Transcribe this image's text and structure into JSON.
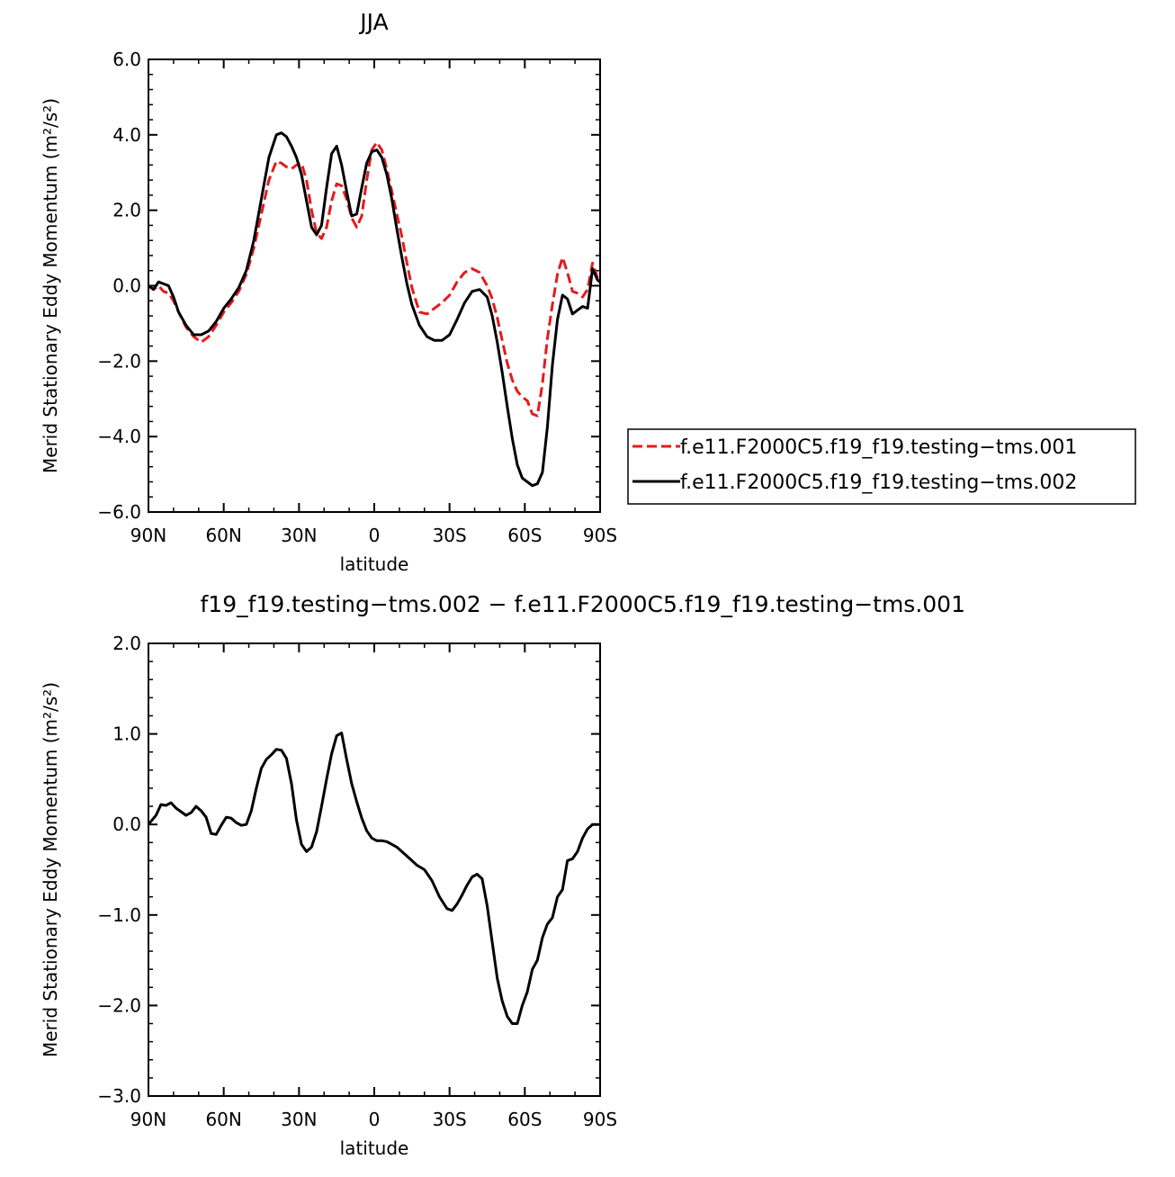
{
  "chart_data": [
    {
      "type": "line",
      "title": "JJA",
      "xlabel": "latitude",
      "ylabel": "Merid Stationary Eddy Momentum (m²/s²)",
      "xlim": [
        90,
        -90
      ],
      "ylim": [
        -6,
        6
      ],
      "x_ticks": [
        {
          "value": 90,
          "label": "90N"
        },
        {
          "value": 60,
          "label": "60N"
        },
        {
          "value": 30,
          "label": "30N"
        },
        {
          "value": 0,
          "label": "0"
        },
        {
          "value": -30,
          "label": "30S"
        },
        {
          "value": -60,
          "label": "60S"
        },
        {
          "value": -90,
          "label": "90S"
        }
      ],
      "y_ticks": [
        {
          "value": 6,
          "label": "6.0"
        },
        {
          "value": 4,
          "label": "4.0"
        },
        {
          "value": 2,
          "label": "2.0"
        },
        {
          "value": 0,
          "label": "0.0"
        },
        {
          "value": -2,
          "label": "−2.0"
        },
        {
          "value": -4,
          "label": "−4.0"
        },
        {
          "value": -6,
          "label": "−6.0"
        }
      ],
      "legend": "right",
      "series": [
        {
          "name": "f.e11.F2000C5.f19_f19.testing−tms.001",
          "color": "#e41a1c",
          "dash": "dashed",
          "x": [
            90,
            88,
            86,
            84,
            82,
            80,
            78,
            75,
            72,
            69,
            66,
            63,
            60,
            57,
            54,
            51,
            48,
            45,
            42,
            39,
            37,
            35,
            33,
            31,
            29,
            27,
            25,
            23,
            21,
            19,
            17,
            15,
            13,
            11,
            9,
            7,
            5,
            3,
            1,
            -1,
            -3,
            -5,
            -7,
            -9,
            -11,
            -13,
            -15,
            -18,
            -21,
            -24,
            -27,
            -30,
            -33,
            -36,
            -39,
            -42,
            -45,
            -47,
            -49,
            -51,
            -53,
            -55,
            -57,
            -59,
            -61,
            -63,
            -65,
            -67,
            -69,
            -71,
            -73,
            -75,
            -77,
            -79,
            -81,
            -83,
            -85,
            -87,
            -89,
            -90
          ],
          "y": [
            0.0,
            -0.1,
            0.0,
            -0.15,
            -0.2,
            -0.4,
            -0.7,
            -1.1,
            -1.35,
            -1.5,
            -1.35,
            -1.05,
            -0.7,
            -0.45,
            -0.15,
            0.3,
            1.0,
            1.9,
            2.8,
            3.3,
            3.25,
            3.15,
            3.1,
            3.2,
            3.25,
            2.8,
            2.0,
            1.4,
            1.25,
            1.55,
            2.25,
            2.7,
            2.65,
            2.3,
            1.8,
            1.55,
            1.85,
            2.8,
            3.6,
            3.8,
            3.6,
            3.1,
            2.5,
            1.9,
            1.3,
            0.6,
            -0.05,
            -0.7,
            -0.75,
            -0.6,
            -0.45,
            -0.25,
            0.1,
            0.35,
            0.45,
            0.35,
            0.0,
            -0.35,
            -0.85,
            -1.45,
            -2.05,
            -2.5,
            -2.8,
            -2.95,
            -3.05,
            -3.4,
            -3.45,
            -2.6,
            -1.4,
            -0.5,
            0.3,
            0.75,
            0.35,
            -0.15,
            -0.2,
            -0.3,
            -0.1,
            0.6,
            0.2,
            0.1
          ]
        },
        {
          "name": "f.e11.F2000C5.f19_f19.testing−tms.002",
          "color": "#000000",
          "dash": "solid",
          "x": [
            90,
            88,
            86,
            84,
            82,
            80,
            78,
            75,
            72,
            69,
            66,
            63,
            60,
            57,
            54,
            51,
            48,
            45,
            42,
            39,
            37,
            35,
            33,
            31,
            29,
            27,
            25,
            23,
            21,
            19,
            17,
            15,
            13,
            11,
            9,
            7,
            5,
            3,
            1,
            -1,
            -3,
            -5,
            -7,
            -9,
            -11,
            -13,
            -15,
            -18,
            -21,
            -24,
            -27,
            -30,
            -33,
            -36,
            -39,
            -42,
            -45,
            -47,
            -49,
            -51,
            -53,
            -55,
            -57,
            -59,
            -61,
            -63,
            -65,
            -67,
            -69,
            -71,
            -73,
            -75,
            -77,
            -79,
            -81,
            -83,
            -85,
            -87,
            -89,
            -90
          ],
          "y": [
            0.0,
            -0.1,
            0.1,
            0.05,
            0.0,
            -0.3,
            -0.7,
            -1.05,
            -1.3,
            -1.3,
            -1.2,
            -0.95,
            -0.6,
            -0.35,
            -0.05,
            0.4,
            1.2,
            2.3,
            3.4,
            4.0,
            4.05,
            3.95,
            3.7,
            3.4,
            2.95,
            2.25,
            1.55,
            1.35,
            1.6,
            2.6,
            3.5,
            3.7,
            3.2,
            2.5,
            1.85,
            1.9,
            2.6,
            3.25,
            3.55,
            3.6,
            3.4,
            2.95,
            2.3,
            1.5,
            0.75,
            0.05,
            -0.5,
            -1.05,
            -1.35,
            -1.45,
            -1.45,
            -1.3,
            -0.9,
            -0.45,
            -0.15,
            -0.1,
            -0.3,
            -0.8,
            -1.5,
            -2.3,
            -3.2,
            -4.05,
            -4.75,
            -5.1,
            -5.2,
            -5.3,
            -5.25,
            -4.95,
            -3.75,
            -2.1,
            -0.9,
            -0.25,
            -0.35,
            -0.75,
            -0.65,
            -0.55,
            -0.6,
            0.45,
            0.15,
            0.1
          ]
        }
      ]
    },
    {
      "type": "line",
      "title": "f19_f19.testing−tms.002 − f.e11.F2000C5.f19_f19.testing−tms.001",
      "xlabel": "latitude",
      "ylabel": "Merid Stationary Eddy Momentum (m²/s²)",
      "xlim": [
        90,
        -90
      ],
      "ylim": [
        -3,
        2
      ],
      "x_ticks": [
        {
          "value": 90,
          "label": "90N"
        },
        {
          "value": 60,
          "label": "60N"
        },
        {
          "value": 30,
          "label": "30N"
        },
        {
          "value": 0,
          "label": "0"
        },
        {
          "value": -30,
          "label": "30S"
        },
        {
          "value": -60,
          "label": "60S"
        },
        {
          "value": -90,
          "label": "90S"
        }
      ],
      "y_ticks": [
        {
          "value": 2,
          "label": "2.0"
        },
        {
          "value": 1,
          "label": "1.0"
        },
        {
          "value": 0,
          "label": "0.0"
        },
        {
          "value": -1,
          "label": "−1.0"
        },
        {
          "value": -2,
          "label": "−2.0"
        },
        {
          "value": -3,
          "label": "−3.0"
        }
      ],
      "series": [
        {
          "color": "#000000",
          "dash": "solid",
          "x": [
            90,
            87,
            85,
            83,
            81,
            79,
            77,
            75,
            73,
            71,
            69,
            67,
            65,
            63,
            61,
            59,
            57,
            55,
            53,
            51,
            49,
            47,
            45,
            43,
            41,
            39,
            37,
            35,
            33,
            31,
            29,
            27,
            25,
            23,
            21,
            19,
            17,
            15,
            13,
            11,
            9,
            7,
            5,
            3,
            1,
            -1,
            -3,
            -5,
            -7,
            -9,
            -11,
            -13,
            -15,
            -17,
            -20,
            -23,
            -26,
            -29,
            -31,
            -33,
            -35,
            -37,
            -39,
            -41,
            -43,
            -45,
            -47,
            -49,
            -51,
            -53,
            -55,
            -57,
            -59,
            -61,
            -63,
            -65,
            -67,
            -69,
            -71,
            -73,
            -75,
            -77,
            -79,
            -81,
            -83,
            -85,
            -87,
            -89,
            -90
          ],
          "y": [
            0.0,
            0.1,
            0.22,
            0.21,
            0.24,
            0.18,
            0.14,
            0.1,
            0.13,
            0.2,
            0.15,
            0.08,
            -0.1,
            -0.11,
            -0.01,
            0.08,
            0.07,
            0.02,
            -0.01,
            0.0,
            0.15,
            0.4,
            0.62,
            0.72,
            0.77,
            0.83,
            0.82,
            0.73,
            0.45,
            0.05,
            -0.22,
            -0.3,
            -0.25,
            -0.08,
            0.2,
            0.5,
            0.78,
            0.98,
            1.01,
            0.72,
            0.45,
            0.25,
            0.07,
            -0.07,
            -0.15,
            -0.18,
            -0.18,
            -0.19,
            -0.22,
            -0.25,
            -0.3,
            -0.35,
            -0.4,
            -0.45,
            -0.5,
            -0.62,
            -0.8,
            -0.93,
            -0.95,
            -0.88,
            -0.78,
            -0.67,
            -0.58,
            -0.55,
            -0.6,
            -0.9,
            -1.3,
            -1.7,
            -1.95,
            -2.12,
            -2.2,
            -2.2,
            -2.0,
            -1.85,
            -1.6,
            -1.5,
            -1.25,
            -1.1,
            -1.03,
            -0.8,
            -0.72,
            -0.4,
            -0.38,
            -0.3,
            -0.15,
            -0.05,
            0.0,
            0.0,
            0.0
          ]
        }
      ]
    }
  ]
}
